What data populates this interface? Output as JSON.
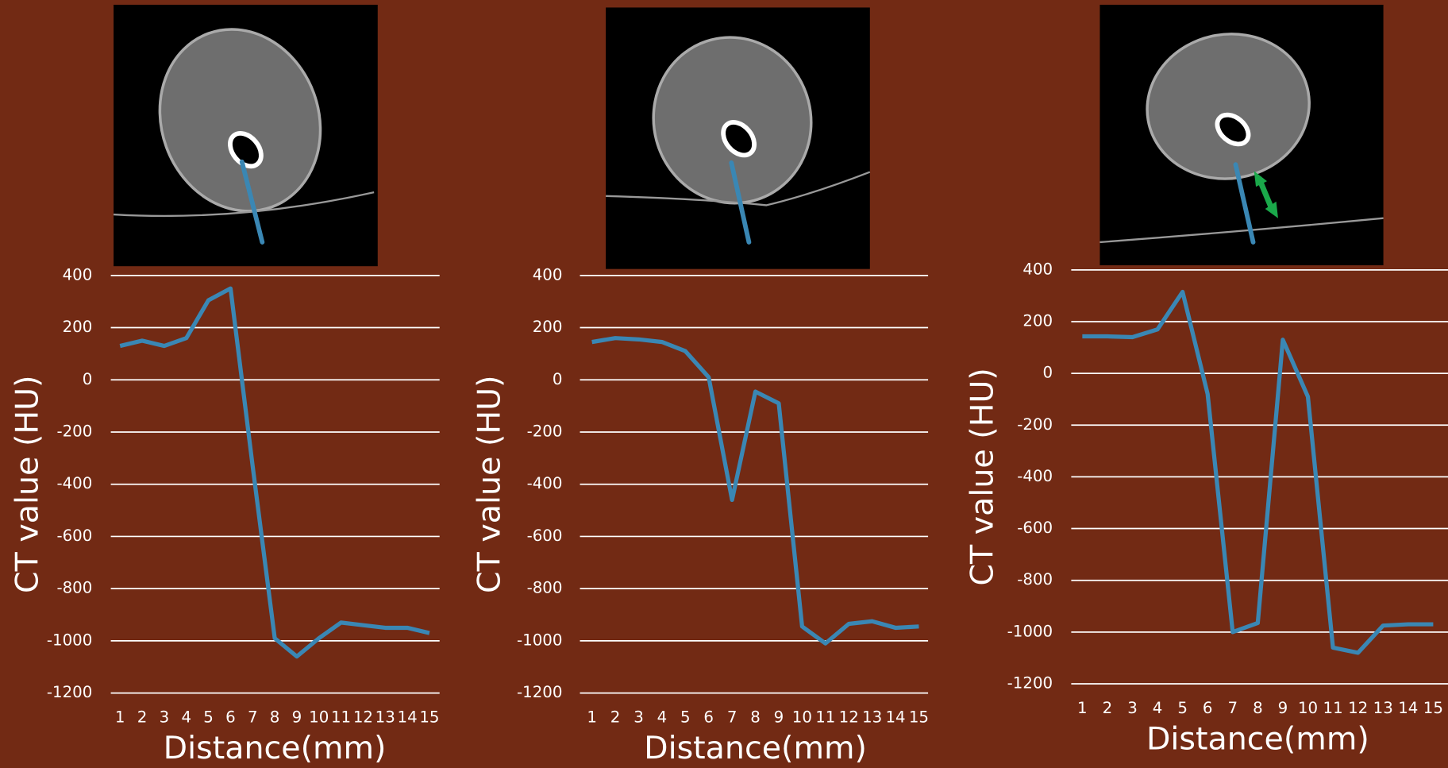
{
  "chart_data": [
    {
      "type": "line",
      "x_label": "Distance(mm)",
      "y_label": "CT value (HU)",
      "categories": [
        "1",
        "2",
        "3",
        "4",
        "5",
        "6",
        "7",
        "8",
        "9",
        "10",
        "11",
        "12",
        "13",
        "14",
        "15"
      ],
      "series": [
        {
          "color": "#3a87b4",
          "values": [
            130,
            150,
            130,
            160,
            305,
            350,
            -330,
            -990,
            -1060,
            -990,
            -930,
            -940,
            -950,
            -950,
            -970
          ]
        }
      ],
      "ylim": [
        -1200,
        400
      ],
      "yticks": [
        -1200,
        -1000,
        -800,
        -600,
        -400,
        -200,
        0,
        200,
        400
      ],
      "grid": true
    },
    {
      "type": "line",
      "x_label": "Distance(mm)",
      "y_label": "CT value (HU)",
      "categories": [
        "1",
        "2",
        "3",
        "4",
        "5",
        "6",
        "7",
        "8",
        "9",
        "10",
        "11",
        "12",
        "13",
        "14",
        "15"
      ],
      "series": [
        {
          "color": "#3a87b4",
          "values": [
            145,
            160,
            155,
            145,
            110,
            10,
            -460,
            -45,
            -90,
            -945,
            -1010,
            -935,
            -925,
            -950,
            -945
          ]
        }
      ],
      "ylim": [
        -1200,
        400
      ],
      "yticks": [
        -1200,
        -1000,
        -800,
        -600,
        -400,
        -200,
        0,
        200,
        400
      ],
      "grid": true
    },
    {
      "type": "line",
      "x_label": "Distance(mm)",
      "y_label": "CT value (HU)",
      "categories": [
        "1",
        "2",
        "3",
        "4",
        "5",
        "6",
        "7",
        "8",
        "9",
        "10",
        "11",
        "12",
        "13",
        "14",
        "15"
      ],
      "series": [
        {
          "color": "#3a87b4",
          "values": [
            143,
            143,
            140,
            170,
            315,
            -80,
            -1000,
            -965,
            130,
            -90,
            -1060,
            -1080,
            -975,
            -970,
            -970
          ]
        }
      ],
      "ylim": [
        -1200,
        400
      ],
      "yticks": [
        -1200,
        -1000,
        -800,
        -600,
        -400,
        -200,
        0,
        200,
        400
      ],
      "grid": true
    }
  ]
}
